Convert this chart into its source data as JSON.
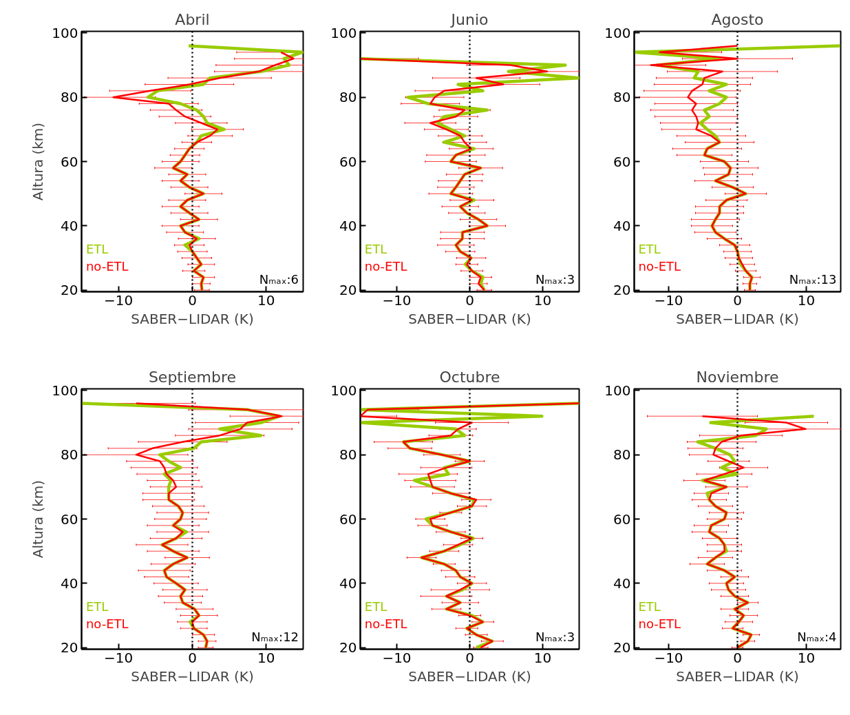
{
  "chart_data": [
    {
      "type": "line",
      "title": "Abril",
      "xlabel": "SABER−LIDAR (K)",
      "ylabel": "Altura (km)",
      "xlim": [
        -15,
        15
      ],
      "ylim": [
        19.5,
        100.5
      ],
      "xticks": [
        -10,
        0,
        10
      ],
      "yticks": [
        20,
        40,
        60,
        80,
        100
      ],
      "grid": false,
      "legend": "bottom left",
      "annotations": [
        "Nₘₐₓ:6"
      ],
      "ref_lines": [
        {
          "axis": "x",
          "value": 0,
          "color": "#000000",
          "line_style": "dotted"
        }
      ],
      "series": [
        {
          "name": "ETL",
          "color": "#99cc00",
          "x": [
            1.3,
            1.2,
            1.5,
            0.2,
            1.2,
            0.6,
            0,
            -1.0,
            0.9,
            -1.0,
            -1.6,
            0.9,
            -0.4,
            -1.6,
            -0.7,
            1.5,
            -0.4,
            -1.6,
            -0.7,
            -2.6,
            -1.6,
            -1.0,
            -0.4,
            0.6,
            1.2,
            4.3,
            2.0,
            1.5,
            0.6,
            -1.6,
            -6.0,
            -4.7,
            1.5,
            2.4,
            9.3,
            13.1,
            12.4,
            14.9,
            -0.5
          ],
          "values": [
            20,
            22,
            24,
            26,
            28,
            30,
            32,
            34,
            36,
            38,
            40,
            42,
            44,
            46,
            48,
            50,
            52,
            54,
            56,
            58,
            60,
            62,
            64,
            66,
            68,
            70,
            72,
            74,
            76,
            78,
            80,
            82,
            84,
            86,
            88,
            90,
            92,
            94,
            96
          ]
        },
        {
          "name": "no-ETL",
          "color": "#ff0000",
          "x": [
            1.3,
            1.2,
            1.5,
            0.2,
            1.2,
            0.6,
            0,
            -0.4,
            0.6,
            -1.0,
            -1.6,
            0.9,
            -0.4,
            -1.6,
            -0.7,
            1.5,
            -0.4,
            -1.6,
            -0.7,
            -2.6,
            -1.6,
            -1.0,
            -0.4,
            0.6,
            2.4,
            3.4,
            1.2,
            -1.0,
            -2.2,
            -3.2,
            -10.7,
            -5.7,
            -0.4,
            3.7,
            9.0,
            11.2,
            13.7,
            12.0
          ],
          "values": [
            20,
            22,
            24,
            26,
            28,
            30,
            32,
            34,
            36,
            38,
            40,
            42,
            44,
            46,
            48,
            50,
            52,
            54,
            56,
            58,
            60,
            62,
            64,
            66,
            68,
            70,
            72,
            74,
            76,
            78,
            80,
            82,
            84,
            86,
            88,
            90,
            92,
            94
          ],
          "xerrors": [
            1.0,
            1.2,
            1.5,
            1.5,
            1.8,
            2.0,
            2.0,
            2.0,
            2.5,
            2.5,
            2.5,
            2.5,
            2.5,
            2.5,
            2.5,
            2.5,
            2.5,
            2.5,
            2.5,
            2.5,
            2.5,
            2.0,
            2.0,
            2.0,
            3.0,
            3.5,
            3.5,
            3.5,
            3.5,
            4.0,
            [
              -14.6,
              -5.0
            ],
            5.5,
            6.0,
            7.0,
            6.0,
            [
              3.2,
              15
            ],
            [
              5.7,
              15
            ],
            [
              6.0,
              15
            ]
          ]
        }
      ]
    },
    {
      "type": "line",
      "title": "Junio",
      "xlabel": "SABER−LIDAR (K)",
      "xlim": [
        -15,
        15
      ],
      "ylim": [
        19.5,
        100.5
      ],
      "xticks": [
        -10,
        0,
        10
      ],
      "yticks": [
        20,
        40,
        60,
        80,
        100
      ],
      "grid": false,
      "legend": "bottom left",
      "annotations": [
        "Nₘₐₓ:3"
      ],
      "ref_lines": [
        {
          "axis": "x",
          "value": 0,
          "color": "#000000",
          "line_style": "dotted"
        }
      ],
      "series": [
        {
          "name": "ETL",
          "color": "#99cc00",
          "x": [
            2.0,
            1.5,
            1.8,
            0.3,
            -0.6,
            0.2,
            -1.3,
            -1.9,
            -1.0,
            -1.0,
            2.4,
            1.2,
            -0.4,
            -1.3,
            0.6,
            -2.6,
            -1.9,
            -1.3,
            -0.7,
            1.5,
            -2.6,
            -1.9,
            0.6,
            -3.5,
            -0.7,
            -2.6,
            -4.4,
            -3.5,
            2.4,
            -5.7,
            -8.5,
            1.8,
            -1.6,
            14.9,
            5.3,
            13.1,
            -15
          ],
          "values": [
            20,
            22,
            24,
            26,
            28,
            30,
            32,
            34,
            36,
            38,
            40,
            42,
            44,
            46,
            48,
            50,
            52,
            54,
            56,
            58,
            60,
            62,
            64,
            66,
            68,
            70,
            72,
            74,
            76,
            78,
            80,
            82,
            84,
            86,
            88,
            90,
            92
          ]
        },
        {
          "name": "no-ETL",
          "color": "#ff0000",
          "x": [
            2.0,
            1.2,
            1.5,
            0.3,
            -0.4,
            0.2,
            -1.3,
            -1.9,
            -1.0,
            -1.0,
            2.4,
            1.2,
            -0.4,
            -1.3,
            0.3,
            -2.6,
            -1.9,
            -1.3,
            -0.7,
            1.5,
            -2.6,
            -1.9,
            0.2,
            -0.7,
            -1.3,
            -3.2,
            -5.4,
            -1.9,
            -0.7,
            -5.4,
            -4.8,
            -3.5,
            4.6,
            0.9,
            10.6,
            5.6,
            -15
          ],
          "values": [
            20,
            22,
            24,
            26,
            28,
            30,
            32,
            34,
            36,
            38,
            40,
            42,
            44,
            46,
            48,
            50,
            52,
            54,
            56,
            58,
            60,
            62,
            64,
            66,
            68,
            70,
            72,
            74,
            76,
            78,
            80,
            82,
            84,
            86,
            88,
            90,
            92
          ],
          "xerrors": [
            1.0,
            1.2,
            1.5,
            1.5,
            1.5,
            2.0,
            2.0,
            2.5,
            3.0,
            3.0,
            2.5,
            2.5,
            2.5,
            2.5,
            3.0,
            3.0,
            2.5,
            3.0,
            2.5,
            3.0,
            3.5,
            4.0,
            3.0,
            3.0,
            3.0,
            3.0,
            3.5,
            3.0,
            3.5,
            4.0,
            4.0,
            4.0,
            5.0,
            6.0,
            [
              5.6,
              15
            ],
            6.0,
            [
              -15,
              -7.0
            ]
          ]
        }
      ]
    },
    {
      "type": "line",
      "title": "Agosto",
      "xlabel": "SABER−LIDAR (K)",
      "xlim": [
        -15,
        15
      ],
      "ylim": [
        19.5,
        100.5
      ],
      "xticks": [
        -10,
        0,
        10
      ],
      "yticks": [
        20,
        40,
        60,
        80,
        100
      ],
      "grid": false,
      "legend": "bottom left",
      "annotations": [
        "Nₘₐₓ:13"
      ],
      "ref_lines": [
        {
          "axis": "x",
          "value": 0,
          "color": "#000000",
          "line_style": "dotted"
        }
      ],
      "series": [
        {
          "name": "ETL",
          "color": "#99cc00",
          "x": [
            1.8,
            1.8,
            2.1,
            1.2,
            0.5,
            0.2,
            0,
            -0.4,
            -1.9,
            -3.2,
            -3.7,
            -3.2,
            -2.6,
            -2.6,
            -1.6,
            1.2,
            -0.7,
            -3.2,
            -1.3,
            -1.0,
            -1.9,
            -4.8,
            -4.4,
            -2.6,
            -3.2,
            -4.4,
            -5.4,
            -4.1,
            -4.8,
            -2.6,
            -1.6,
            -4.1,
            -1.6,
            -6.3,
            -5.7,
            -11.6,
            -2.6,
            -15,
            14.9
          ],
          "values": [
            20,
            22,
            24,
            26,
            28,
            30,
            32,
            34,
            36,
            38,
            40,
            42,
            44,
            46,
            48,
            50,
            52,
            54,
            56,
            58,
            60,
            62,
            64,
            66,
            68,
            70,
            72,
            74,
            76,
            78,
            80,
            82,
            84,
            86,
            88,
            90,
            92,
            94,
            96
          ]
        },
        {
          "name": "no-ETL",
          "color": "#ff0000",
          "x": [
            1.8,
            1.8,
            2.1,
            1.2,
            0.7,
            0.2,
            0,
            -0.4,
            -1.9,
            -3.2,
            -3.7,
            -3.2,
            -2.6,
            -2.6,
            -1.6,
            1.2,
            -0.7,
            -3.2,
            -1.3,
            -1.0,
            -1.9,
            -4.8,
            -4.4,
            -2.6,
            -3.8,
            -6.0,
            -5.7,
            -6.0,
            -6.6,
            -6.0,
            -7.2,
            -6.6,
            -5.1,
            -4.8,
            -2.2,
            -12.6,
            0,
            -11.3,
            0
          ],
          "values": [
            20,
            22,
            24,
            26,
            28,
            30,
            32,
            34,
            36,
            38,
            40,
            42,
            44,
            46,
            48,
            50,
            52,
            54,
            56,
            58,
            60,
            62,
            64,
            66,
            68,
            70,
            72,
            74,
            76,
            78,
            80,
            82,
            84,
            86,
            88,
            90,
            92,
            94,
            96
          ],
          "xerrors": [
            0.8,
            1.0,
            1.2,
            1.5,
            1.8,
            2.0,
            2.0,
            2.2,
            2.5,
            3.0,
            3.0,
            3.5,
            3.5,
            3.5,
            3.0,
            3.0,
            3.0,
            3.0,
            3.5,
            4.0,
            3.5,
            4.0,
            5.0,
            5.0,
            5.0,
            5.0,
            5.5,
            6.0,
            6.0,
            6.0,
            7.0,
            7.0,
            7.0,
            7.0,
            8.0,
            [
              -15,
              -4.6
            ],
            8.0,
            [
              -15,
              -2.3
            ],
            null
          ]
        }
      ]
    },
    {
      "type": "line",
      "title": "Septiembre",
      "xlabel": "SABER−LIDAR (K)",
      "ylabel": "Altura (km)",
      "xlim": [
        -15,
        15
      ],
      "ylim": [
        19.5,
        100.5
      ],
      "xticks": [
        -10,
        0,
        10
      ],
      "yticks": [
        20,
        40,
        60,
        80,
        100
      ],
      "grid": false,
      "legend": "bottom left",
      "annotations": [
        "Nₘₐₓ:12"
      ],
      "ref_lines": [
        {
          "axis": "x",
          "value": 0,
          "color": "#000000",
          "line_style": "dotted"
        }
      ],
      "series": [
        {
          "name": "ETL",
          "color": "#99cc00",
          "x": [
            1.8,
            2.0,
            1.5,
            0.2,
            -0.3,
            0.9,
            0.3,
            -1.3,
            -1.6,
            -1.0,
            -2.2,
            -3.5,
            -3.8,
            -2.6,
            -0.7,
            -2.6,
            -4.1,
            -2.2,
            -0.8,
            -2.6,
            -1.6,
            -1.3,
            -1.9,
            -3.2,
            -3.2,
            -3.2,
            -2.9,
            -3.8,
            -1.6,
            -3.2,
            -4.4,
            0.2,
            1.2,
            9.3,
            3.7,
            9.3,
            11.8,
            7.5,
            -15
          ],
          "values": [
            20,
            22,
            24,
            26,
            28,
            30,
            32,
            34,
            36,
            38,
            40,
            42,
            44,
            46,
            48,
            50,
            52,
            54,
            56,
            58,
            60,
            62,
            64,
            66,
            68,
            70,
            72,
            74,
            76,
            78,
            80,
            82,
            84,
            86,
            88,
            90,
            92,
            94,
            96
          ]
        },
        {
          "name": "no-ETL",
          "color": "#ff0000",
          "x": [
            1.8,
            2.0,
            1.5,
            0.2,
            0,
            0.9,
            0.3,
            -1.3,
            -1.6,
            -1.0,
            -2.2,
            -3.5,
            -3.8,
            -2.6,
            -0.7,
            -2.6,
            -4.1,
            -2.2,
            -1.3,
            -2.6,
            -1.6,
            -1.3,
            -1.9,
            -3.2,
            -3.2,
            -2.2,
            -2.6,
            -3.5,
            -3.8,
            -4.4,
            -7.6,
            -5.4,
            -1.3,
            3.7,
            6.5,
            7.4,
            12.1,
            7.5,
            -7.6
          ],
          "values": [
            20,
            22,
            24,
            26,
            28,
            30,
            32,
            34,
            36,
            38,
            40,
            42,
            44,
            46,
            48,
            50,
            52,
            54,
            56,
            58,
            60,
            62,
            64,
            66,
            68,
            70,
            72,
            74,
            76,
            78,
            80,
            82,
            84,
            86,
            88,
            90,
            92,
            94,
            96
          ],
          "xerrors": [
            1.0,
            1.2,
            1.5,
            1.8,
            2.0,
            2.5,
            2.5,
            2.5,
            3.0,
            3.0,
            3.0,
            3.0,
            3.5,
            3.0,
            3.0,
            3.5,
            3.5,
            3.5,
            3.5,
            3.5,
            3.5,
            3.5,
            3.5,
            3.5,
            3.5,
            3.5,
            3.5,
            4.0,
            4.5,
            4.5,
            7.0,
            6.0,
            6.0,
            6.0,
            7.0,
            7.0,
            [
              5.1,
              15
            ],
            [
              -0.5,
              15
            ],
            [
              -15,
              0.4
            ]
          ]
        }
      ]
    },
    {
      "type": "line",
      "title": "Octubre",
      "xlabel": "SABER−LIDAR (K)",
      "xlim": [
        -15,
        15
      ],
      "ylim": [
        19.5,
        100.5
      ],
      "xticks": [
        -10,
        0,
        10
      ],
      "yticks": [
        20,
        40,
        60,
        80,
        100
      ],
      "grid": false,
      "legend": "bottom left",
      "annotations": [
        "Nₘₐₓ:3"
      ],
      "ref_lines": [
        {
          "axis": "x",
          "value": 0,
          "color": "#000000",
          "line_style": "dotted"
        }
      ],
      "series": [
        {
          "name": "ETL",
          "color": "#99cc00",
          "x": [
            0.9,
            3.1,
            0.9,
            -0.4,
            1.8,
            0.3,
            -3.2,
            -1.3,
            -3.2,
            -1.0,
            0.3,
            -1.3,
            -1.9,
            -3.5,
            -6.6,
            -3.5,
            -1.3,
            0.5,
            -2.6,
            -5.1,
            -6.0,
            -2.6,
            0.3,
            0.6,
            -2.6,
            -5.1,
            -7.6,
            -2.9,
            -3.5,
            0,
            -3.8,
            -8.2,
            -9.1,
            -0.7,
            -1.9,
            -15,
            9.9,
            -15,
            15
          ],
          "values": [
            20,
            22,
            24,
            26,
            28,
            30,
            32,
            34,
            36,
            38,
            40,
            42,
            44,
            46,
            48,
            50,
            52,
            54,
            56,
            58,
            60,
            62,
            64,
            66,
            68,
            70,
            72,
            74,
            76,
            78,
            80,
            82,
            84,
            86,
            88,
            90,
            92,
            94,
            96
          ]
        },
        {
          "name": "no-ETL",
          "color": "#ff0000",
          "x": [
            1.5,
            3.1,
            0.9,
            -0.4,
            1.8,
            0,
            -3.2,
            -1.3,
            -3.2,
            -1.3,
            0.3,
            -1.3,
            -1.9,
            -3.5,
            -6.6,
            -3.5,
            -1.6,
            0.3,
            -2.6,
            -5.1,
            -5.4,
            -2.6,
            0.3,
            0.9,
            -2.6,
            -5.1,
            -5.4,
            -5.7,
            -3.2,
            0,
            -3.8,
            -8.2,
            -9.1,
            -2.6,
            -1.6,
            0.3,
            -15,
            -14,
            15
          ],
          "values": [
            20,
            22,
            24,
            26,
            28,
            30,
            32,
            34,
            36,
            38,
            40,
            42,
            44,
            46,
            48,
            50,
            52,
            54,
            56,
            58,
            60,
            62,
            64,
            66,
            68,
            70,
            72,
            74,
            76,
            78,
            80,
            82,
            84,
            86,
            88,
            90,
            92,
            94,
            96
          ],
          "xerrors": [
            1.0,
            1.5,
            1.5,
            1.5,
            1.5,
            1.5,
            2.0,
            2.5,
            3.5,
            4.0,
            2.0,
            2.0,
            2.0,
            1.5,
            2.0,
            2.0,
            2.0,
            1.5,
            2.0,
            2.0,
            2.0,
            1.5,
            2.0,
            2.0,
            2.5,
            3.0,
            3.5,
            4.0,
            3.5,
            2.0,
            2.5,
            3.0,
            4.0,
            3.0,
            2.5,
            5.0,
            [
              -15,
              -10.0
            ],
            [
              -15,
              -7.0
            ],
            null
          ]
        }
      ]
    },
    {
      "type": "line",
      "title": "Noviembre",
      "xlabel": "SABER−LIDAR (K)",
      "xlim": [
        -15,
        15
      ],
      "ylim": [
        19.5,
        100.5
      ],
      "xticks": [
        -10,
        0,
        10
      ],
      "yticks": [
        20,
        40,
        60,
        80,
        100
      ],
      "grid": false,
      "legend": "bottom left",
      "annotations": [
        "Nₘₐₓ:4"
      ],
      "ref_lines": [
        {
          "axis": "x",
          "value": 0,
          "color": "#000000",
          "line_style": "dotted"
        }
      ],
      "series": [
        {
          "name": "ETL",
          "color": "#99cc00",
          "x": [
            0,
            1.5,
            2.0,
            -0.7,
            0.2,
            0.9,
            -0.4,
            1.5,
            -0.4,
            -1.3,
            -1.6,
            -0.4,
            -1.9,
            -4.4,
            -3.2,
            -1.6,
            -1.9,
            -2.6,
            -4.1,
            -3.8,
            -1.9,
            -1.6,
            -3.2,
            -4.1,
            -4.4,
            -1.6,
            -5.1,
            -0.1,
            -2.3,
            -0.4,
            -1.1,
            -3.2,
            -5.8,
            2.7,
            4.2,
            -3.9,
            11.1
          ],
          "values": [
            20,
            22,
            24,
            26,
            28,
            30,
            32,
            34,
            36,
            38,
            40,
            42,
            44,
            46,
            48,
            50,
            52,
            54,
            56,
            58,
            60,
            62,
            64,
            66,
            68,
            70,
            72,
            74,
            76,
            78,
            80,
            82,
            84,
            86,
            88,
            90,
            92
          ]
        },
        {
          "name": "no-ETL",
          "color": "#ff0000",
          "x": [
            0,
            1.5,
            2.0,
            -0.7,
            0.2,
            0.9,
            -0.4,
            1.5,
            -0.4,
            -1.3,
            -1.6,
            -0.4,
            -1.9,
            -4.4,
            -3.2,
            -1.9,
            -1.9,
            -2.6,
            -4.1,
            -3.8,
            -1.9,
            -1.6,
            -3.2,
            -4.1,
            -3.8,
            -1.6,
            -4.8,
            -1.9,
            0.9,
            -1.3,
            -3.5,
            -3.2,
            -2.3,
            0.5,
            9.9,
            7.1,
            -5.1
          ],
          "values": [
            20,
            22,
            24,
            26,
            28,
            30,
            32,
            34,
            36,
            38,
            40,
            42,
            44,
            46,
            48,
            50,
            52,
            54,
            56,
            58,
            60,
            62,
            64,
            66,
            68,
            70,
            72,
            74,
            76,
            78,
            80,
            82,
            84,
            86,
            88,
            90,
            92
          ],
          "xerrors": [
            0.8,
            1.0,
            1.2,
            1.5,
            2.0,
            2.0,
            2.0,
            1.5,
            2.0,
            2.5,
            2.5,
            2.0,
            2.5,
            2.5,
            2.5,
            2.5,
            2.5,
            2.5,
            2.5,
            2.5,
            2.5,
            2.5,
            2.5,
            2.5,
            2.5,
            3.0,
            3.0,
            4.0,
            3.5,
            3.0,
            3.5,
            4.0,
            5.0,
            6.0,
            [
              3.9,
              15
            ],
            6.0,
            8.0
          ]
        }
      ]
    }
  ]
}
